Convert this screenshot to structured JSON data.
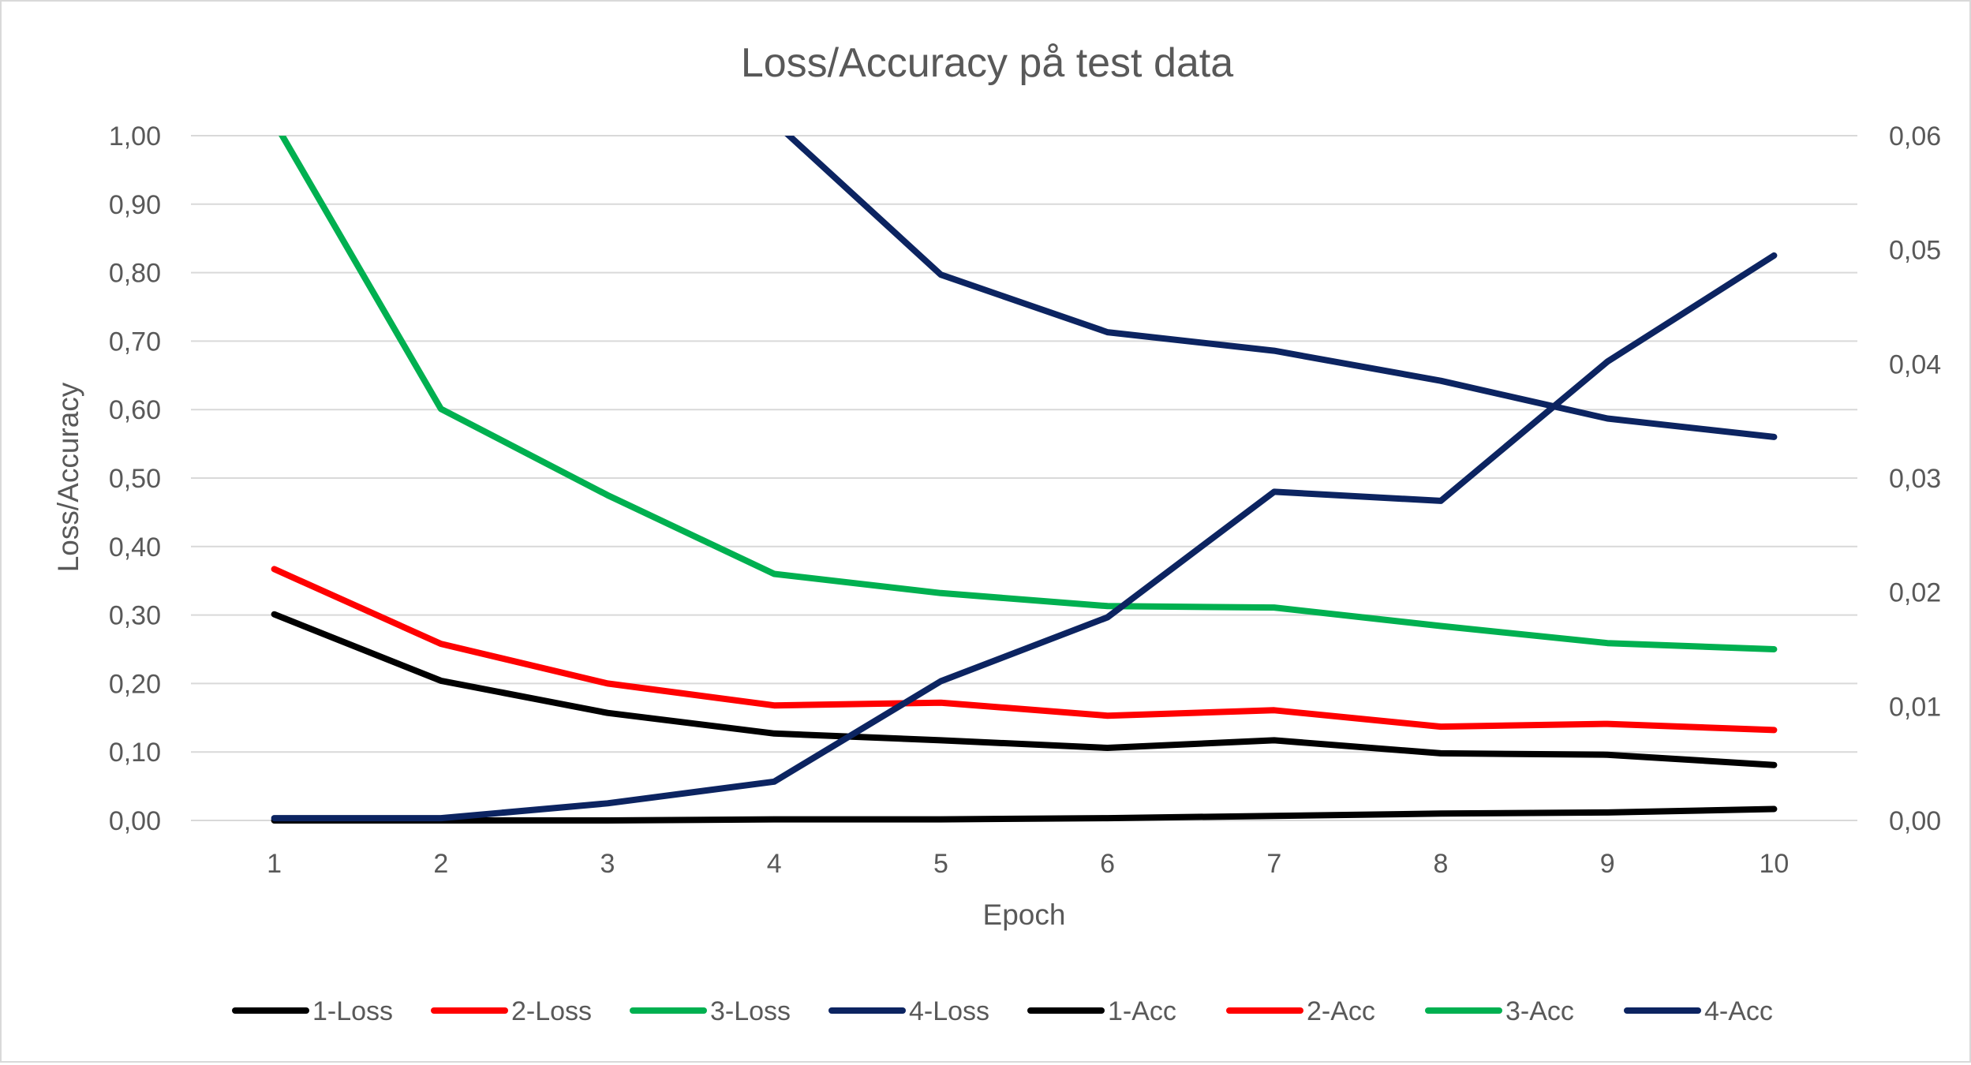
{
  "chart_data": {
    "type": "line",
    "title": "Loss/Accuracy på test data",
    "xlabel": "Epoch",
    "ylabel": "Loss/Accuracy",
    "x": [
      1,
      2,
      3,
      4,
      5,
      6,
      7,
      8,
      9,
      10
    ],
    "x_tick_labels": [
      "1",
      "2",
      "3",
      "4",
      "5",
      "6",
      "7",
      "8",
      "9",
      "10"
    ],
    "ylim": [
      0,
      1
    ],
    "y_tick_labels": [
      "0,00",
      "0,10",
      "0,20",
      "0,30",
      "0,40",
      "0,50",
      "0,60",
      "0,70",
      "0,80",
      "0,90",
      "1,00"
    ],
    "y2lim": [
      0,
      0.06
    ],
    "y2_tick_labels": [
      "0,00",
      "0,01",
      "0,02",
      "0,03",
      "0,04",
      "0,05",
      "0,06"
    ],
    "grid": true,
    "legend_position": "bottom",
    "series": [
      {
        "name": "1-Loss",
        "color": "#000000",
        "axis": "left",
        "values": [
          0.301,
          0.204,
          0.157,
          0.127,
          0.117,
          0.106,
          0.117,
          0.098,
          0.096,
          0.081
        ]
      },
      {
        "name": "2-Loss",
        "color": "#ff0000",
        "axis": "left",
        "values": [
          0.367,
          0.258,
          0.2,
          0.168,
          0.172,
          0.153,
          0.161,
          0.137,
          0.141,
          0.132
        ]
      },
      {
        "name": "3-Loss",
        "color": "#00b050",
        "axis": "left",
        "values": [
          1.02,
          0.601,
          0.475,
          0.36,
          0.332,
          0.313,
          0.311,
          0.284,
          0.259,
          0.25
        ]
      },
      {
        "name": "4-Loss",
        "color": "#0c2461",
        "axis": "left",
        "values": [
          null,
          null,
          null,
          1.02,
          0.797,
          0.713,
          0.686,
          0.642,
          0.587,
          0.56
        ]
      },
      {
        "name": "1-Acc",
        "color": "#000000",
        "axis": "right",
        "values": [
          0.0,
          0.0,
          0.0,
          0.0001,
          0.0001,
          0.0002,
          0.0004,
          0.0006,
          0.0007,
          0.001
        ]
      },
      {
        "name": "2-Acc",
        "color": "#ff0000",
        "axis": "right",
        "values": [
          null,
          null,
          null,
          null,
          null,
          null,
          null,
          null,
          null,
          null
        ]
      },
      {
        "name": "3-Acc",
        "color": "#00b050",
        "axis": "right",
        "values": [
          null,
          null,
          null,
          null,
          null,
          null,
          null,
          null,
          null,
          null
        ]
      },
      {
        "name": "4-Acc",
        "color": "#0c2461",
        "axis": "right",
        "values": [
          0.0002,
          0.0002,
          0.0015,
          0.0034,
          0.0122,
          0.0178,
          0.0288,
          0.028,
          0.0402,
          0.0495
        ]
      }
    ]
  }
}
